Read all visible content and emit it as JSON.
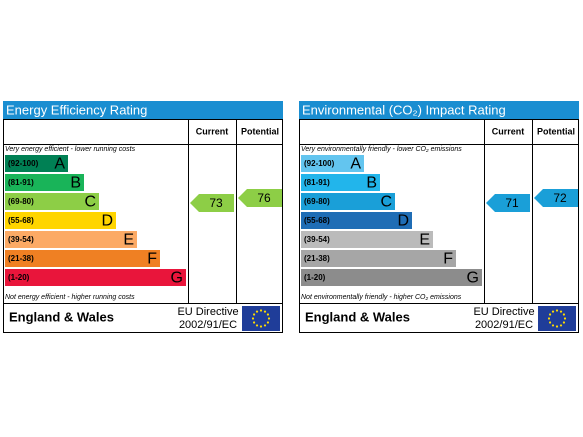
{
  "panels": [
    {
      "title": "Energy Efficiency Rating",
      "columns": [
        "Current",
        "Potential"
      ],
      "top_note": "Very energy efficient - lower running costs",
      "bottom_note": "Not energy efficient - higher running costs",
      "bands": [
        {
          "range": "(92-100)",
          "letter": "A"
        },
        {
          "range": "(81-91)",
          "letter": "B"
        },
        {
          "range": "(69-80)",
          "letter": "C"
        },
        {
          "range": "(55-68)",
          "letter": "D"
        },
        {
          "range": "(39-54)",
          "letter": "E"
        },
        {
          "range": "(21-38)",
          "letter": "F"
        },
        {
          "range": "(1-20)",
          "letter": "G"
        }
      ],
      "current": 73,
      "potential": 76,
      "footer": {
        "region": "England & Wales",
        "directive": "EU Directive",
        "code": "2002/91/EC"
      }
    },
    {
      "title": "Environmental (CO₂) Impact Rating",
      "columns": [
        "Current",
        "Potential"
      ],
      "top_note": "Very environmentally friendly - lower CO₂ emissions",
      "bottom_note": "Not environmentally friendly - higher CO₂ emissions",
      "bands": [
        {
          "range": "(92-100)",
          "letter": "A"
        },
        {
          "range": "(81-91)",
          "letter": "B"
        },
        {
          "range": "(69-80)",
          "letter": "C"
        },
        {
          "range": "(55-68)",
          "letter": "D"
        },
        {
          "range": "(39-54)",
          "letter": "E"
        },
        {
          "range": "(21-38)",
          "letter": "F"
        },
        {
          "range": "(1-20)",
          "letter": "G"
        }
      ],
      "current": 71,
      "potential": 72,
      "footer": {
        "region": "England & Wales",
        "directive": "EU Directive",
        "code": "2002/91/EC"
      }
    }
  ]
}
